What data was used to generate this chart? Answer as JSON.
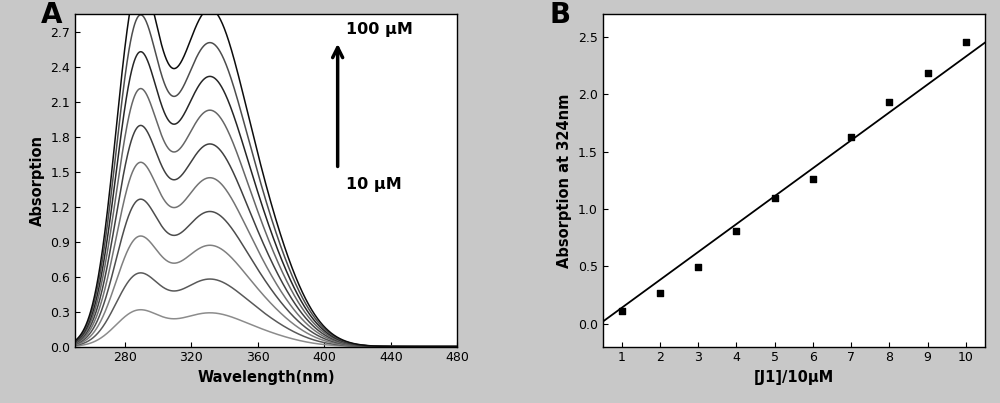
{
  "panel_A": {
    "label": "A",
    "xlabel": "Wavelength(nm)",
    "ylabel": "Absorption",
    "xlim": [
      250,
      480
    ],
    "ylim": [
      0.0,
      2.85
    ],
    "xticks": [
      280,
      320,
      360,
      400,
      440,
      480
    ],
    "yticks": [
      0.0,
      0.3,
      0.6,
      0.9,
      1.2,
      1.5,
      1.8,
      2.1,
      2.4,
      2.7
    ],
    "annotation_high": "100 μM",
    "annotation_low": "10 μM",
    "n_curves": 10,
    "curve_scales": [
      0.1,
      0.2,
      0.3,
      0.4,
      0.5,
      0.6,
      0.7,
      0.8,
      0.9,
      1.0
    ],
    "max_peak1": 2.78,
    "max_peak2": 2.45,
    "background_color": "#ffffff",
    "fig_background": "#c8c8c8"
  },
  "panel_B": {
    "label": "B",
    "xlabel": "[J1]/10μM",
    "ylabel": "Absorption at 324nm",
    "xlim": [
      0.5,
      10.5
    ],
    "ylim": [
      -0.2,
      2.7
    ],
    "xticks": [
      1,
      2,
      3,
      4,
      5,
      6,
      7,
      8,
      9,
      10
    ],
    "yticks": [
      0.0,
      0.5,
      1.0,
      1.5,
      2.0,
      2.5
    ],
    "scatter_x": [
      1,
      2,
      3,
      4,
      5,
      6,
      7,
      8,
      9,
      10
    ],
    "scatter_y": [
      0.11,
      0.27,
      0.49,
      0.81,
      1.1,
      1.26,
      1.63,
      1.93,
      2.19,
      2.46
    ],
    "fit_x_start": 0.3,
    "fit_x_end": 10.5,
    "fit_slope": 0.2435,
    "fit_intercept": -0.105,
    "background_color": "#ffffff"
  }
}
